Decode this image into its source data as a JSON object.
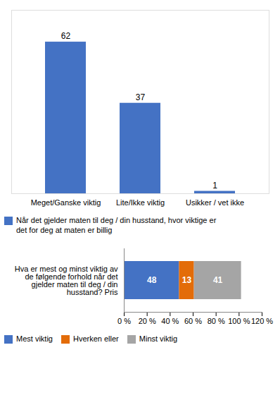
{
  "chart_data": [
    {
      "type": "bar",
      "categories": [
        "Meget/Ganske viktig",
        "Lite/Ikke viktig",
        "Usikker / vet ikke"
      ],
      "series": [
        {
          "name": "Når det gjelder maten til deg / din husstand, hvor viktige er\ndet for deg at maten er billig",
          "color": "#4472C4",
          "values": [
            62,
            37,
            1
          ]
        }
      ],
      "ylim": [
        0,
        75
      ],
      "data_labels": true,
      "tick_labels": "x",
      "legend": "lower left"
    },
    {
      "type": "bar",
      "orientation": "horizontal",
      "stacked": true,
      "categories": [
        "Hva er mest og minst viktig av\nde følgende forhold når det\ngjelder maten til deg / din\nhusstand? Pris"
      ],
      "series": [
        {
          "name": "Mest viktig",
          "color": "#4472C4",
          "values": [
            48
          ]
        },
        {
          "name": "Hverken eller",
          "color": "#E36C09",
          "values": [
            13
          ]
        },
        {
          "name": "Minst viktig",
          "color": "#A5A5A5",
          "values": [
            41
          ]
        }
      ],
      "xlim": [
        0,
        120
      ],
      "xticks": [
        {
          "value": 0,
          "label": "0 %"
        },
        {
          "value": 20,
          "label": "20 %"
        },
        {
          "value": 40,
          "label": "40 %"
        },
        {
          "value": 60,
          "label": "60 %"
        },
        {
          "value": 80,
          "label": "80 %"
        },
        {
          "value": 100,
          "label": "100 %"
        },
        {
          "value": 120,
          "label": "120 %"
        }
      ],
      "data_labels": true,
      "legend": "lower left"
    }
  ]
}
